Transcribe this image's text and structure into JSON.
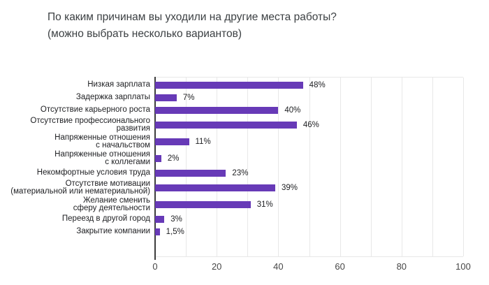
{
  "title": {
    "line1": "По каким причинам вы уходили на другие места работы?",
    "line2": "(можно выбрать несколько вариантов)"
  },
  "chart_data": {
    "type": "bar",
    "orientation": "horizontal",
    "title": "По каким причинам вы уходили на другие места работы? (можно выбрать несколько вариантов)",
    "categories": [
      "Низкая зарплата",
      "Задержка зарплаты",
      "Отсутствие карьерного роста",
      "Отсутствие профессионального развития",
      "Напряженные отношения с начальством",
      "Напряженные отношения с коллегами",
      "Некомфортные условия труда",
      "Отсутствие мотивации (материальной или нематериальной)",
      "Желание сменить сферу деятельности",
      "Переезд в другой город",
      "Закрытие компании"
    ],
    "label_lines": [
      [
        "Низкая зарплата"
      ],
      [
        "Задержка зарплаты"
      ],
      [
        "Отсутствие карьерного роста"
      ],
      [
        "Отсутствие профессионального",
        "развития"
      ],
      [
        "Напряженные отношения",
        "с начальством"
      ],
      [
        "Напряженные отношения",
        "с коллегами"
      ],
      [
        "Некомфортные условия труда"
      ],
      [
        "Отсутствие мотивации",
        "(материальной или нематериальной)"
      ],
      [
        "Желание сменить",
        "сферу деятельности"
      ],
      [
        "Переезд в другой город"
      ],
      [
        "Закрытие компании"
      ]
    ],
    "values": [
      48,
      7,
      40,
      46,
      11,
      2,
      23,
      39,
      31,
      3,
      1.5
    ],
    "value_labels": [
      "48%",
      "7%",
      "40%",
      "46%",
      "11%",
      "2%",
      "23%",
      "39%",
      "31%",
      "3%",
      "1,5%"
    ],
    "xlim": [
      0,
      100
    ],
    "x_ticks": [
      0,
      20,
      40,
      60,
      80,
      100
    ],
    "grid_step": 10,
    "grid": true,
    "legend": "none",
    "bar_color": "#673ab7",
    "axis_color": "#3c3c3c",
    "grid_color": "#e8e8e8"
  }
}
